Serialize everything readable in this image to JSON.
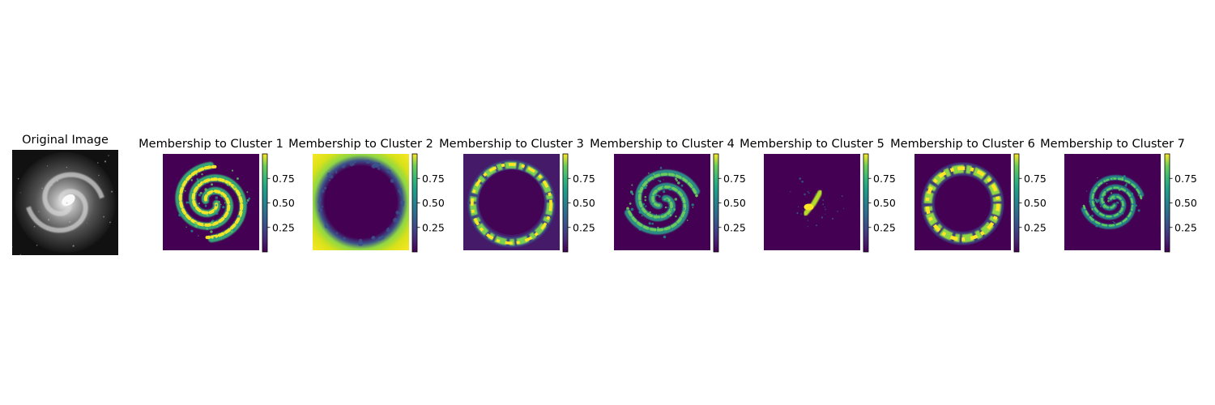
{
  "figure": {
    "original_title": "Original Image"
  },
  "chart_data": [
    {
      "type": "heatmap",
      "title": "Original Image",
      "colormap": "gray",
      "axis": "off",
      "colorbar": false,
      "content": "spiral-galaxy"
    },
    {
      "type": "heatmap",
      "title": "Membership to Cluster 1",
      "colormap": "viridis",
      "axis": "off",
      "colorbar": true,
      "clim": [
        0,
        1
      ],
      "colorbar_ticks": [
        "0.25",
        "0.50",
        "0.75"
      ],
      "pattern": "spiral-arms"
    },
    {
      "type": "heatmap",
      "title": "Membership to Cluster 2",
      "colormap": "viridis",
      "axis": "off",
      "colorbar": true,
      "clim": [
        0,
        1
      ],
      "colorbar_ticks": [
        "0.25",
        "0.50",
        "0.75"
      ],
      "pattern": "background-outside-disk"
    },
    {
      "type": "heatmap",
      "title": "Membership to Cluster 3",
      "colormap": "viridis",
      "axis": "off",
      "colorbar": true,
      "clim": [
        0,
        1
      ],
      "colorbar_ticks": [
        "0.25",
        "0.50",
        "0.75"
      ],
      "pattern": "outer-ring"
    },
    {
      "type": "heatmap",
      "title": "Membership to Cluster 4",
      "colormap": "viridis",
      "axis": "off",
      "colorbar": true,
      "clim": [
        0,
        1
      ],
      "colorbar_ticks": [
        "0.25",
        "0.50",
        "0.75"
      ],
      "pattern": "spiral-arms"
    },
    {
      "type": "heatmap",
      "title": "Membership to Cluster 5",
      "colormap": "viridis",
      "axis": "off",
      "colorbar": true,
      "clim": [
        0,
        1
      ],
      "colorbar_ticks": [
        "0.25",
        "0.50",
        "0.75"
      ],
      "pattern": "core"
    },
    {
      "type": "heatmap",
      "title": "Membership to Cluster 6",
      "colormap": "viridis",
      "axis": "off",
      "colorbar": true,
      "clim": [
        0,
        1
      ],
      "colorbar_ticks": [
        "0.25",
        "0.50",
        "0.75"
      ],
      "pattern": "ring"
    },
    {
      "type": "heatmap",
      "title": "Membership to Cluster 7",
      "colormap": "viridis",
      "axis": "off",
      "colorbar": true,
      "clim": [
        0,
        1
      ],
      "colorbar_ticks": [
        "0.25",
        "0.50",
        "0.75"
      ],
      "pattern": "inner-spiral"
    }
  ]
}
